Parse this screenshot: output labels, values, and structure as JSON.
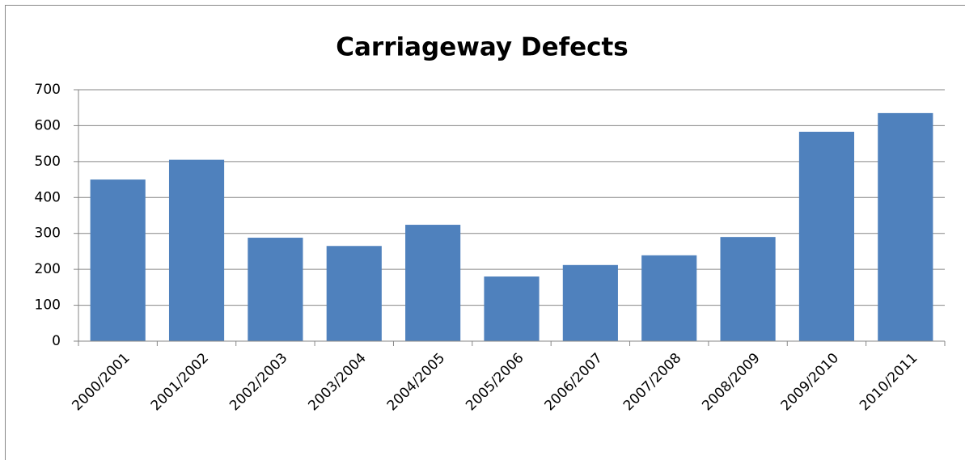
{
  "chart_data": {
    "type": "bar",
    "title": "Carriageway Defects",
    "categories": [
      "2000/2001",
      "2001/2002",
      "2002/2003",
      "2003/2004",
      "2004/2005",
      "2005/2006",
      "2006/2007",
      "2007/2008",
      "2008/2009",
      "2009/2010",
      "2010/2011"
    ],
    "values": [
      450,
      505,
      288,
      265,
      324,
      180,
      212,
      239,
      290,
      583,
      635
    ],
    "color": "#4f81bd",
    "ylim": [
      0,
      700
    ],
    "yticks": [
      0,
      100,
      200,
      300,
      400,
      500,
      600,
      700
    ],
    "grid": true
  }
}
